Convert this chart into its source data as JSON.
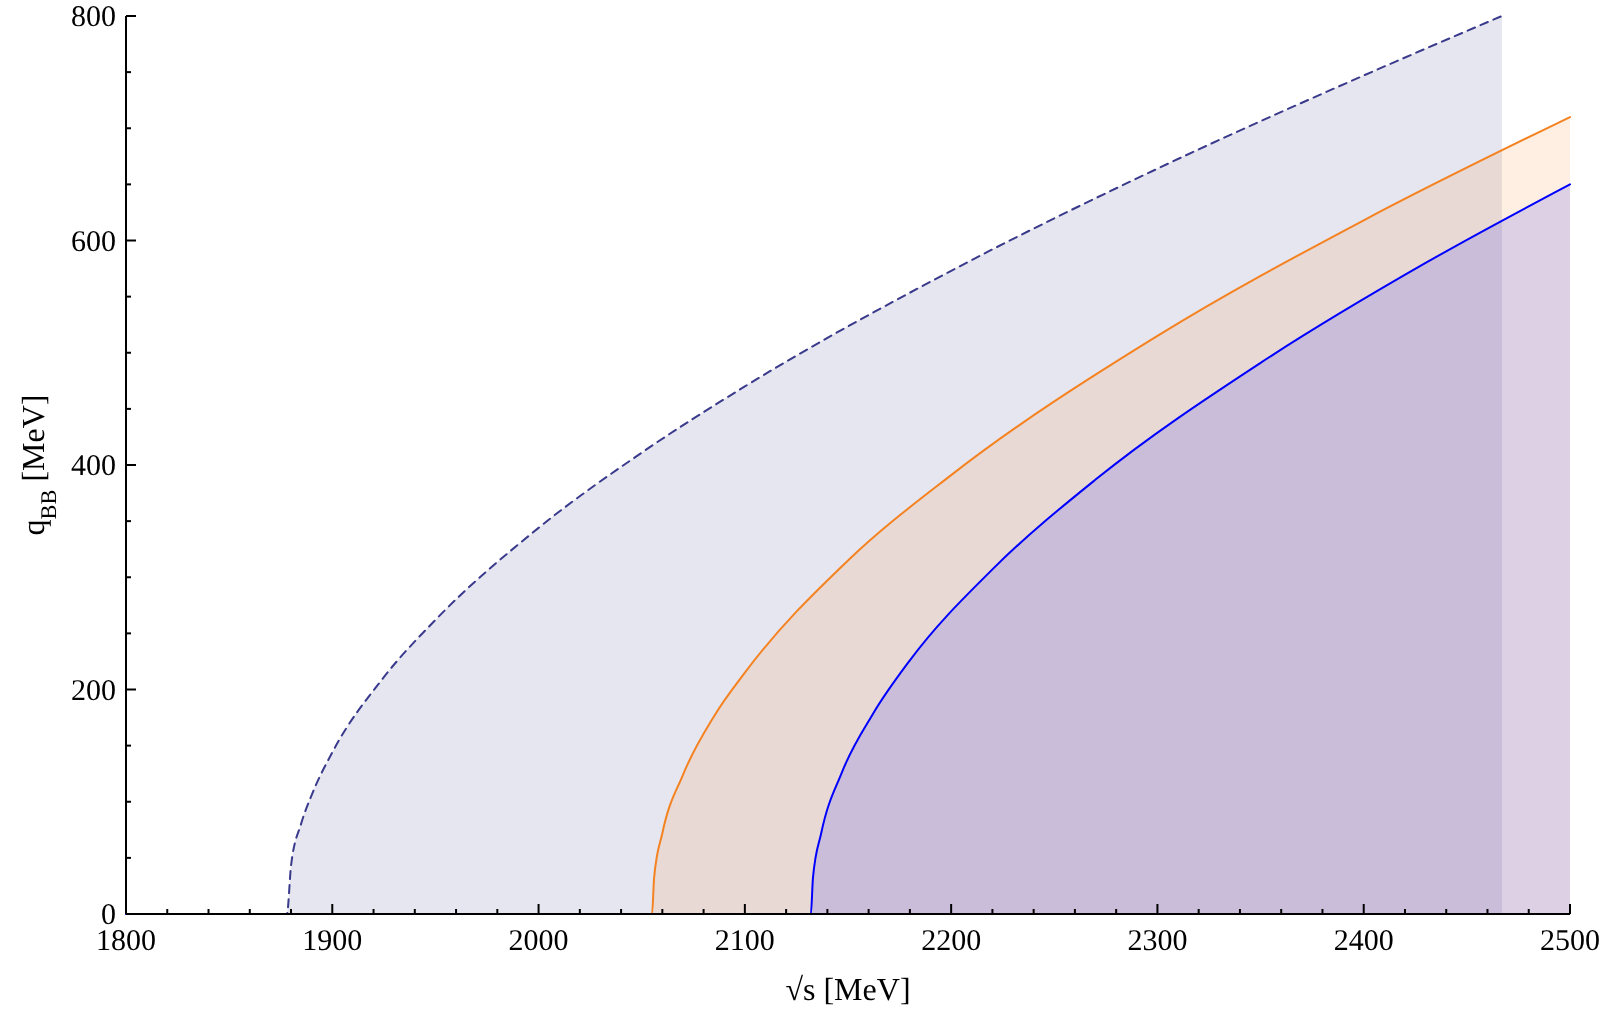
{
  "chart_data": {
    "type": "area",
    "xlabel": "√s [MeV]",
    "ylabel": "q$_{BB}$ [MeV]",
    "xlim": [
      1800,
      2500
    ],
    "ylim": [
      0,
      800
    ],
    "xticks": [
      1800,
      {
        "value": 1820,
        "label": null
      },
      {
        "value": 1840,
        "label": null
      },
      {
        "value": 1860,
        "label": null
      },
      {
        "value": 1880,
        "label": null
      },
      1900,
      {
        "value": 1920,
        "label": null
      },
      {
        "value": 1940,
        "label": null
      },
      {
        "value": 1960,
        "label": null
      },
      {
        "value": 1980,
        "label": null
      },
      2000,
      {
        "value": 2020,
        "label": null
      },
      {
        "value": 2040,
        "label": null
      },
      {
        "value": 2060,
        "label": null
      },
      {
        "value": 2080,
        "label": null
      },
      2100,
      {
        "value": 2120,
        "label": null
      },
      {
        "value": 2140,
        "label": null
      },
      {
        "value": 2160,
        "label": null
      },
      {
        "value": 2180,
        "label": null
      },
      2200,
      {
        "value": 2220,
        "label": null
      },
      {
        "value": 2240,
        "label": null
      },
      {
        "value": 2260,
        "label": null
      },
      {
        "value": 2280,
        "label": null
      },
      2300,
      {
        "value": 2320,
        "label": null
      },
      {
        "value": 2340,
        "label": null
      },
      {
        "value": 2360,
        "label": null
      },
      {
        "value": 2380,
        "label": null
      },
      2400,
      {
        "value": 2420,
        "label": null
      },
      {
        "value": 2440,
        "label": null
      },
      {
        "value": 2460,
        "label": null
      },
      {
        "value": 2480,
        "label": null
      },
      2500
    ],
    "yticks": [
      0,
      {
        "value": 50,
        "label": null
      },
      {
        "value": 100,
        "label": null
      },
      {
        "value": 150,
        "label": null
      },
      200,
      {
        "value": 250,
        "label": null
      },
      {
        "value": 300,
        "label": null
      },
      {
        "value": 350,
        "label": null
      },
      400,
      {
        "value": 450,
        "label": null
      },
      {
        "value": 500,
        "label": null
      },
      {
        "value": 550,
        "label": null
      },
      600,
      {
        "value": 650,
        "label": null
      },
      {
        "value": 700,
        "label": null
      },
      {
        "value": 750,
        "label": null
      },
      800
    ],
    "grid": false,
    "series": [
      {
        "color": "#3a3a8c",
        "line_style": "dashed",
        "x": [
          1800,
          1878,
          1880,
          1885,
          1890,
          1900,
          1925,
          1950,
          2000,
          2050,
          2100,
          2200,
          2300,
          2400,
          2467
        ],
        "values": [
          0,
          0,
          43,
          81,
          106,
          144,
          211,
          262,
          344,
          411,
          470,
          573,
          664,
          747,
          800
        ]
      },
      {
        "color": "#f58220",
        "line_style": "solid",
        "x": [
          1800,
          2055,
          2056,
          2060,
          2070,
          2085,
          2100,
          2150,
          2200,
          2300,
          2400,
          2500
        ],
        "values": [
          0,
          0,
          32,
          72,
          124,
          176,
          215,
          315,
          391,
          515,
          618,
          710
        ]
      },
      {
        "color": "#0000ff",
        "line_style": "solid",
        "x": [
          1800,
          2132,
          2133,
          2137,
          2147,
          2162,
          2180,
          2220,
          2270,
          2350,
          2430,
          2500
        ],
        "values": [
          0,
          0,
          32,
          72,
          126,
          178,
          226,
          307,
          387,
          491,
          580,
          650
        ]
      }
    ]
  }
}
